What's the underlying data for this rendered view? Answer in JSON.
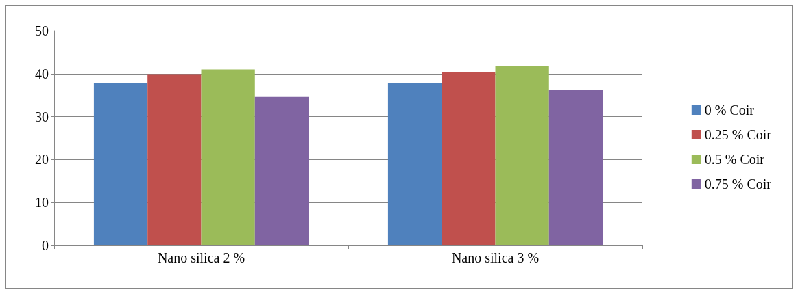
{
  "chart_data": {
    "type": "bar",
    "categories": [
      "Nano silica 2 %",
      "Nano silica 3 %"
    ],
    "series": [
      {
        "name": "0 % Coir",
        "color": "#4f81bd",
        "values": [
          37.8,
          37.8
        ]
      },
      {
        "name": "0.25 % Coir",
        "color": "#c0504d",
        "values": [
          39.9,
          40.4
        ]
      },
      {
        "name": "0.5 % Coir",
        "color": "#9bbb59",
        "values": [
          41.0,
          41.7
        ]
      },
      {
        "name": "0.75 % Coir",
        "color": "#8064a2",
        "values": [
          34.6,
          36.3
        ]
      }
    ],
    "ylim": [
      0,
      50
    ],
    "yticks": [
      0,
      10,
      20,
      30,
      40,
      50
    ],
    "grid": "y",
    "legend": "right"
  }
}
